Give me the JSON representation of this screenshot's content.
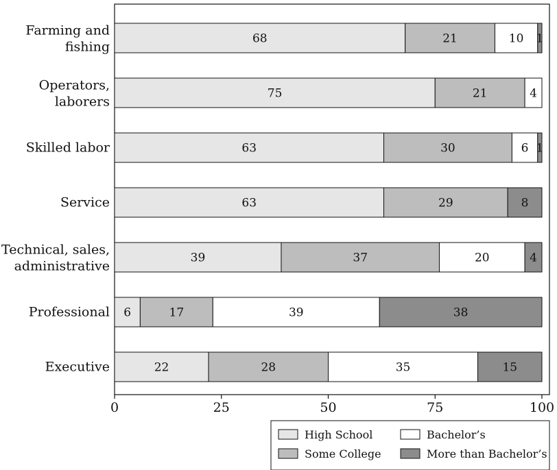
{
  "chart_data": {
    "type": "bar",
    "orientation": "horizontal",
    "stacked": true,
    "categories": [
      [
        "Farming and",
        "fishing"
      ],
      [
        "Operators,",
        "laborers"
      ],
      [
        "Skilled labor"
      ],
      [
        "Service"
      ],
      [
        "Technical, sales,",
        "administrative"
      ],
      [
        "Professional"
      ],
      [
        "Executive"
      ]
    ],
    "series": [
      {
        "name": "High School",
        "color": "#e6e6e6",
        "values": [
          68,
          75,
          63,
          63,
          39,
          6,
          22
        ]
      },
      {
        "name": "Some College",
        "color": "#bdbdbd",
        "values": [
          21,
          21,
          30,
          29,
          37,
          17,
          28
        ]
      },
      {
        "name": "Bachelor’s",
        "color": "#ffffff",
        "values": [
          10,
          4,
          6,
          0,
          20,
          39,
          35
        ]
      },
      {
        "name": "More than Bachelor’s",
        "color": "#8c8c8c",
        "values": [
          1,
          0,
          1,
          8,
          4,
          38,
          15
        ]
      }
    ],
    "xlim": [
      0,
      100
    ],
    "xticks": [
      "0",
      "25",
      "50",
      "75",
      "100"
    ],
    "grid": false,
    "legend_position": "bottom-right",
    "legend_order": [
      "High School",
      "Bachelor’s",
      "Some College",
      "More than Bachelor’s"
    ],
    "title": "",
    "xlabel": "",
    "ylabel": ""
  }
}
